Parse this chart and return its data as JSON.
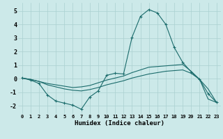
{
  "xlabel": "Humidex (Indice chaleur)",
  "background_color": "#cce9e9",
  "grid_color": "#aad0d0",
  "line_color": "#1a6b6b",
  "xlim": [
    -0.5,
    23.5
  ],
  "ylim": [
    -2.6,
    5.6
  ],
  "yticks": [
    -2,
    -1,
    0,
    1,
    2,
    3,
    4,
    5
  ],
  "xticks": [
    0,
    1,
    2,
    3,
    4,
    5,
    6,
    7,
    8,
    9,
    10,
    11,
    12,
    13,
    14,
    15,
    16,
    17,
    18,
    19,
    20,
    21,
    22,
    23
  ],
  "line1_x": [
    0,
    1,
    2,
    3,
    4,
    5,
    6,
    7,
    8,
    9,
    10,
    11,
    12,
    13,
    14,
    15,
    16,
    17,
    18,
    19,
    20,
    21,
    22,
    23
  ],
  "line1_y": [
    0.05,
    -0.1,
    -0.35,
    -1.2,
    -1.65,
    -1.8,
    -1.95,
    -2.25,
    -1.35,
    -0.9,
    0.25,
    0.4,
    0.35,
    3.05,
    4.6,
    5.1,
    4.85,
    4.0,
    2.3,
    1.2,
    0.5,
    -0.05,
    -1.1,
    -1.75
  ],
  "line2_x": [
    0,
    1,
    2,
    3,
    4,
    5,
    6,
    7,
    8,
    9,
    10,
    11,
    12,
    13,
    14,
    15,
    16,
    17,
    18,
    19,
    20,
    21,
    22,
    23
  ],
  "line2_y": [
    0.05,
    -0.05,
    -0.2,
    -0.35,
    -0.45,
    -0.55,
    -0.65,
    -0.6,
    -0.5,
    -0.3,
    -0.1,
    0.05,
    0.2,
    0.45,
    0.65,
    0.85,
    0.9,
    0.95,
    1.0,
    1.05,
    0.55,
    -0.05,
    -0.75,
    -1.75
  ],
  "line3_x": [
    0,
    1,
    2,
    3,
    4,
    5,
    6,
    7,
    8,
    9,
    10,
    11,
    12,
    13,
    14,
    15,
    16,
    17,
    18,
    19,
    20,
    21,
    22,
    23
  ],
  "line3_y": [
    0.05,
    -0.05,
    -0.2,
    -0.45,
    -0.6,
    -0.75,
    -0.85,
    -0.9,
    -0.8,
    -0.65,
    -0.45,
    -0.3,
    -0.15,
    0.05,
    0.2,
    0.35,
    0.45,
    0.55,
    0.6,
    0.65,
    0.4,
    -0.05,
    -1.5,
    -1.75
  ]
}
